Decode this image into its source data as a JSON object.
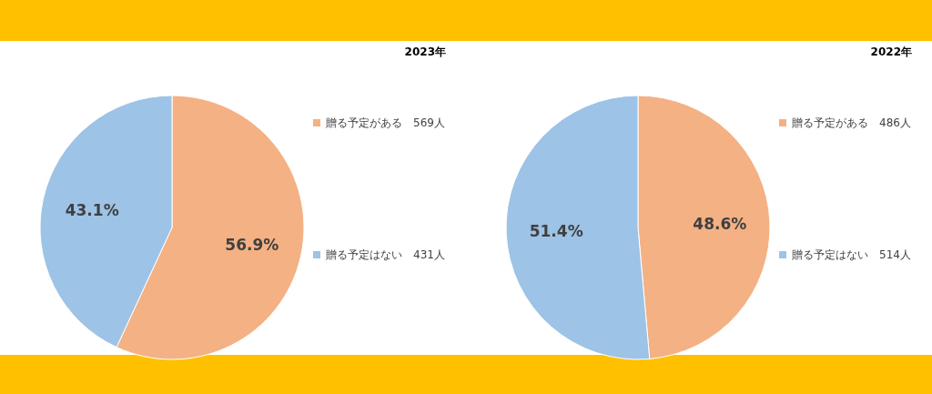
{
  "chart_data": [
    {
      "type": "pie",
      "title": "2023年",
      "categories": [
        "贈る予定がある　569人",
        "贈る予定はない　431人"
      ],
      "values": [
        56.9,
        43.1
      ],
      "value_labels": [
        "56.9%",
        "43.1%"
      ],
      "colors": [
        "#f4b183",
        "#9dc3e6"
      ],
      "legend": "right"
    },
    {
      "type": "pie",
      "title": "2022年",
      "categories": [
        "贈る予定がある　486人",
        "贈る予定はない　514人"
      ],
      "values": [
        48.6,
        51.4
      ],
      "value_labels": [
        "48.6%",
        "51.4%"
      ],
      "colors": [
        "#f4b183",
        "#9dc3e6"
      ],
      "legend": "right"
    }
  ]
}
